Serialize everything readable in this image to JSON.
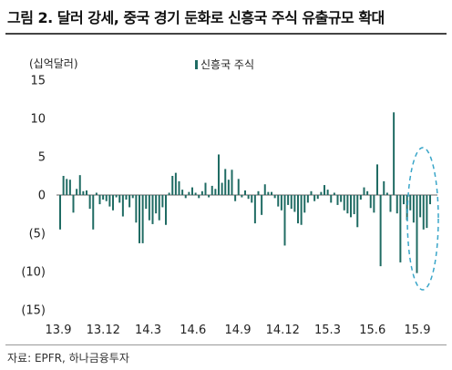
{
  "title": "그림 2. 달러 강세, 중국 경기 둔화로 신흥국 주식 유출규모 확대",
  "source": "자료: EPFR, 하나금융투자",
  "chart_data": {
    "type": "bar",
    "unit_label": "(십억달러)",
    "legend": [
      {
        "name": "신흥국 주식",
        "color": "#1f6b63"
      }
    ],
    "legend_position": "top-center",
    "grid": false,
    "ylim": [
      -15,
      15
    ],
    "y_ticks": [
      15,
      10,
      5,
      0,
      -5,
      -10,
      -15
    ],
    "y_tick_labels": [
      "15",
      "10",
      "5",
      "0",
      "(5)",
      "(10)",
      "(15)"
    ],
    "x_tick_labels": [
      "13.9",
      "13.12",
      "14.3",
      "14.6",
      "14.9",
      "14.12",
      "15.3",
      "15.6",
      "15.9"
    ],
    "series": [
      {
        "name": "신흥국 주식",
        "color": "#1f6b63",
        "values": [
          -4.5,
          2.5,
          2.1,
          2.0,
          -2.3,
          0.8,
          2.6,
          0.5,
          0.6,
          -1.8,
          -4.5,
          0.3,
          -1.2,
          -0.6,
          -0.8,
          -1.5,
          -2.0,
          -0.3,
          -1.0,
          -2.8,
          -0.6,
          -1.6,
          -0.4,
          -3.6,
          -6.3,
          -6.3,
          -1.8,
          -3.3,
          -3.8,
          -2.4,
          -3.3,
          -1.6,
          -3.9,
          0.3,
          2.5,
          2.9,
          1.8,
          0.7,
          -0.4,
          0.4,
          1.0,
          0.3,
          -0.4,
          0.5,
          1.6,
          -0.3,
          1.2,
          0.8,
          5.3,
          1.6,
          3.4,
          2.0,
          3.3,
          -0.8,
          2.1,
          -0.3,
          0.6,
          -0.5,
          -1.0,
          -3.7,
          0.5,
          -2.6,
          1.4,
          0.4,
          0.4,
          -0.4,
          -1.5,
          -2.0,
          -6.6,
          -1.3,
          -1.8,
          -2.2,
          -3.7,
          -3.9,
          -2.3,
          -1.0,
          0.5,
          -0.8,
          -0.5,
          0.4,
          1.3,
          0.7,
          -1.0,
          0.3,
          -1.3,
          -0.9,
          -2.0,
          -2.4,
          -2.9,
          -2.5,
          -4.2,
          -0.6,
          1.0,
          0.5,
          -1.7,
          -2.3,
          4.0,
          -9.3,
          1.8,
          0.3,
          -2.2,
          10.8,
          -2.4,
          -8.8,
          -1.2,
          -3.3,
          -2.0,
          -3.6,
          -10.2,
          -2.9,
          -4.5,
          -4.3,
          -1.2
        ]
      }
    ],
    "annotation": "highlighted recent period (dashed ellipse)"
  }
}
